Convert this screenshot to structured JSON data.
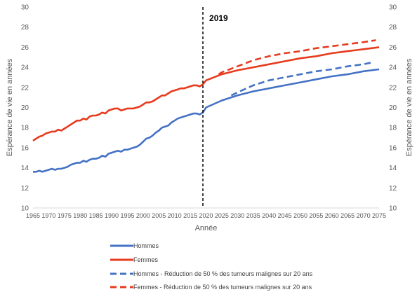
{
  "chart_data": {
    "type": "line",
    "title": "",
    "xlabel": "Année",
    "ylabel": "Espérance de vie en années",
    "ylabel_right": "Espérance de vie en années",
    "xlim": [
      1965,
      2075
    ],
    "ylim": [
      10,
      30
    ],
    "x_ticks": [
      1965,
      1970,
      1975,
      1980,
      1985,
      1990,
      1995,
      2000,
      2005,
      2010,
      2015,
      2020,
      2025,
      2030,
      2035,
      2040,
      2045,
      2050,
      2055,
      2060,
      2065,
      2070,
      2075
    ],
    "y_ticks": [
      10,
      12,
      14,
      16,
      18,
      20,
      22,
      24,
      26,
      28,
      30
    ],
    "grid": false,
    "annotation": {
      "x": 2019,
      "label": "2019",
      "style": "dashed-vertical-line"
    },
    "legend_position": "bottom",
    "series": [
      {
        "name": "Hommes",
        "color": "#4472C4",
        "style": "solid",
        "x": [
          1965,
          1966,
          1967,
          1968,
          1969,
          1970,
          1971,
          1972,
          1973,
          1974,
          1975,
          1976,
          1977,
          1978,
          1979,
          1980,
          1981,
          1982,
          1983,
          1984,
          1985,
          1986,
          1987,
          1988,
          1989,
          1990,
          1991,
          1992,
          1993,
          1994,
          1995,
          1996,
          1997,
          1998,
          1999,
          2000,
          2001,
          2002,
          2003,
          2004,
          2005,
          2006,
          2007,
          2008,
          2009,
          2010,
          2011,
          2012,
          2013,
          2014,
          2015,
          2016,
          2017,
          2018,
          2019,
          2020,
          2025,
          2030,
          2035,
          2040,
          2045,
          2050,
          2055,
          2060,
          2065,
          2070,
          2075
        ],
        "values": [
          13.6,
          13.6,
          13.7,
          13.6,
          13.7,
          13.8,
          13.9,
          13.8,
          13.9,
          13.9,
          14.0,
          14.1,
          14.3,
          14.4,
          14.5,
          14.5,
          14.7,
          14.6,
          14.8,
          14.9,
          14.9,
          15.0,
          15.2,
          15.1,
          15.4,
          15.5,
          15.6,
          15.7,
          15.6,
          15.8,
          15.8,
          15.9,
          16.0,
          16.1,
          16.3,
          16.6,
          16.9,
          17.0,
          17.2,
          17.5,
          17.7,
          18.0,
          18.1,
          18.2,
          18.5,
          18.7,
          18.9,
          19.0,
          19.1,
          19.2,
          19.3,
          19.4,
          19.4,
          19.3,
          19.5,
          20.0,
          20.7,
          21.2,
          21.6,
          21.9,
          22.2,
          22.5,
          22.8,
          23.1,
          23.3,
          23.6,
          23.8
        ]
      },
      {
        "name": "Femmes",
        "color": "#E63B1E",
        "style": "solid",
        "x": [
          1965,
          1966,
          1967,
          1968,
          1969,
          1970,
          1971,
          1972,
          1973,
          1974,
          1975,
          1976,
          1977,
          1978,
          1979,
          1980,
          1981,
          1982,
          1983,
          1984,
          1985,
          1986,
          1987,
          1988,
          1989,
          1990,
          1991,
          1992,
          1993,
          1994,
          1995,
          1996,
          1997,
          1998,
          1999,
          2000,
          2001,
          2002,
          2003,
          2004,
          2005,
          2006,
          2007,
          2008,
          2009,
          2010,
          2011,
          2012,
          2013,
          2014,
          2015,
          2016,
          2017,
          2018,
          2019,
          2020,
          2025,
          2030,
          2035,
          2040,
          2045,
          2050,
          2055,
          2060,
          2065,
          2070,
          2075
        ],
        "values": [
          16.7,
          16.9,
          17.1,
          17.2,
          17.4,
          17.5,
          17.6,
          17.6,
          17.8,
          17.7,
          17.9,
          18.1,
          18.3,
          18.5,
          18.7,
          18.7,
          18.9,
          18.8,
          19.1,
          19.2,
          19.2,
          19.3,
          19.5,
          19.4,
          19.7,
          19.8,
          19.9,
          19.9,
          19.7,
          19.8,
          19.9,
          19.9,
          19.9,
          20.0,
          20.1,
          20.3,
          20.5,
          20.5,
          20.6,
          20.8,
          21.0,
          21.2,
          21.2,
          21.4,
          21.6,
          21.7,
          21.8,
          21.9,
          21.9,
          22.0,
          22.1,
          22.2,
          22.2,
          22.1,
          22.3,
          22.7,
          23.3,
          23.7,
          24.0,
          24.3,
          24.6,
          24.9,
          25.1,
          25.4,
          25.6,
          25.8,
          26.0
        ]
      },
      {
        "name": "Hommes - Réduction de 50 % des tumeurs malignes sur 20 ans",
        "color": "#4472C4",
        "style": "dashed",
        "x": [
          2028,
          2030,
          2035,
          2040,
          2045,
          2050,
          2055,
          2060,
          2065,
          2070,
          2073
        ],
        "values": [
          21.2,
          21.5,
          22.2,
          22.7,
          23.0,
          23.3,
          23.6,
          23.8,
          24.1,
          24.3,
          24.5
        ]
      },
      {
        "name": "Femmes - Réduction de 50 % des tumeurs malignes  sur 20 ans",
        "color": "#E63B1E",
        "style": "dashed",
        "x": [
          2024,
          2025,
          2030,
          2035,
          2040,
          2045,
          2050,
          2055,
          2060,
          2065,
          2070,
          2074
        ],
        "values": [
          23.3,
          23.5,
          24.1,
          24.7,
          25.1,
          25.4,
          25.6,
          25.9,
          26.1,
          26.3,
          26.5,
          26.7
        ]
      }
    ]
  }
}
